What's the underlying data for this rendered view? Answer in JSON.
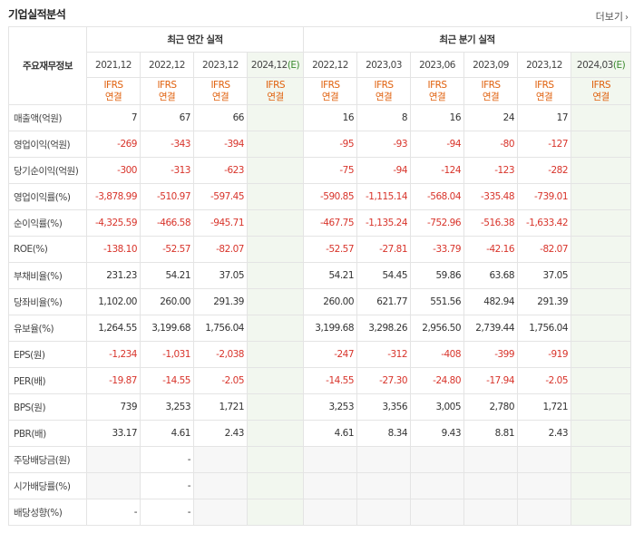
{
  "header": {
    "title": "기업실적분석",
    "more_label": "더보기"
  },
  "table": {
    "corner_label": "주요재무정보",
    "group_annual": "최근 연간 실적",
    "group_quarterly": "최근 분기 실적",
    "periods": [
      "2021,12",
      "2022,12",
      "2023,12",
      "2024,12(E)",
      "2022,12",
      "2023,03",
      "2023,06",
      "2023,09",
      "2023,12",
      "2024,03(E)"
    ],
    "standards": [
      "IFRS\n연결",
      "IFRS\n연결",
      "IFRS\n연결",
      "IFRS\n연결",
      "IFRS\n연결",
      "IFRS\n연결",
      "IFRS\n연결",
      "IFRS\n연결",
      "IFRS\n연결",
      "IFRS\n연결"
    ],
    "rows": [
      {
        "label": "매출액(억원)",
        "values": [
          "7",
          "67",
          "66",
          "",
          "16",
          "8",
          "16",
          "24",
          "17",
          ""
        ]
      },
      {
        "label": "영업이익(억원)",
        "values": [
          "-269",
          "-343",
          "-394",
          "",
          "-95",
          "-93",
          "-94",
          "-80",
          "-127",
          ""
        ]
      },
      {
        "label": "당기순이익(억원)",
        "values": [
          "-300",
          "-313",
          "-623",
          "",
          "-75",
          "-94",
          "-124",
          "-123",
          "-282",
          ""
        ]
      },
      {
        "label": "영업이익률(%)",
        "values": [
          "-3,878.99",
          "-510.97",
          "-597.45",
          "",
          "-590.85",
          "-1,115.14",
          "-568.04",
          "-335.48",
          "-739.01",
          ""
        ]
      },
      {
        "label": "순이익률(%)",
        "values": [
          "-4,325.59",
          "-466.58",
          "-945.71",
          "",
          "-467.75",
          "-1,135.24",
          "-752.96",
          "-516.38",
          "-1,633.42",
          ""
        ]
      },
      {
        "label": "ROE(%)",
        "values": [
          "-138.10",
          "-52.57",
          "-82.07",
          "",
          "-52.57",
          "-27.81",
          "-33.79",
          "-42.16",
          "-82.07",
          ""
        ]
      },
      {
        "label": "부채비율(%)",
        "values": [
          "231.23",
          "54.21",
          "37.05",
          "",
          "54.21",
          "54.45",
          "59.86",
          "63.68",
          "37.05",
          ""
        ]
      },
      {
        "label": "당좌비율(%)",
        "values": [
          "1,102.00",
          "260.00",
          "291.39",
          "",
          "260.00",
          "621.77",
          "551.56",
          "482.94",
          "291.39",
          ""
        ]
      },
      {
        "label": "유보율(%)",
        "values": [
          "1,264.55",
          "3,199.68",
          "1,756.04",
          "",
          "3,199.68",
          "3,298.26",
          "2,956.50",
          "2,739.44",
          "1,756.04",
          ""
        ]
      },
      {
        "label": "EPS(원)",
        "values": [
          "-1,234",
          "-1,031",
          "-2,038",
          "",
          "-247",
          "-312",
          "-408",
          "-399",
          "-919",
          ""
        ]
      },
      {
        "label": "PER(배)",
        "values": [
          "-19.87",
          "-14.55",
          "-2.05",
          "",
          "-14.55",
          "-27.30",
          "-24.80",
          "-17.94",
          "-2.05",
          ""
        ]
      },
      {
        "label": "BPS(원)",
        "values": [
          "739",
          "3,253",
          "1,721",
          "",
          "3,253",
          "3,356",
          "3,005",
          "2,780",
          "1,721",
          ""
        ]
      },
      {
        "label": "PBR(배)",
        "values": [
          "33.17",
          "4.61",
          "2.43",
          "",
          "4.61",
          "8.34",
          "9.43",
          "8.81",
          "2.43",
          ""
        ]
      },
      {
        "label": "주당배당금(원)",
        "values": [
          "",
          "-",
          "",
          "",
          "",
          "",
          "",
          "",
          "",
          ""
        ]
      },
      {
        "label": "시가배당률(%)",
        "values": [
          "",
          "-",
          "",
          "",
          "",
          "",
          "",
          "",
          "",
          ""
        ]
      },
      {
        "label": "배당성향(%)",
        "values": [
          "-",
          "-",
          "",
          "",
          "",
          "",
          "",
          "",
          "",
          ""
        ]
      }
    ]
  },
  "colors": {
    "negative": "#d8342b",
    "standard": "#e0610e",
    "estimate_bg": "#f2f7ef"
  }
}
